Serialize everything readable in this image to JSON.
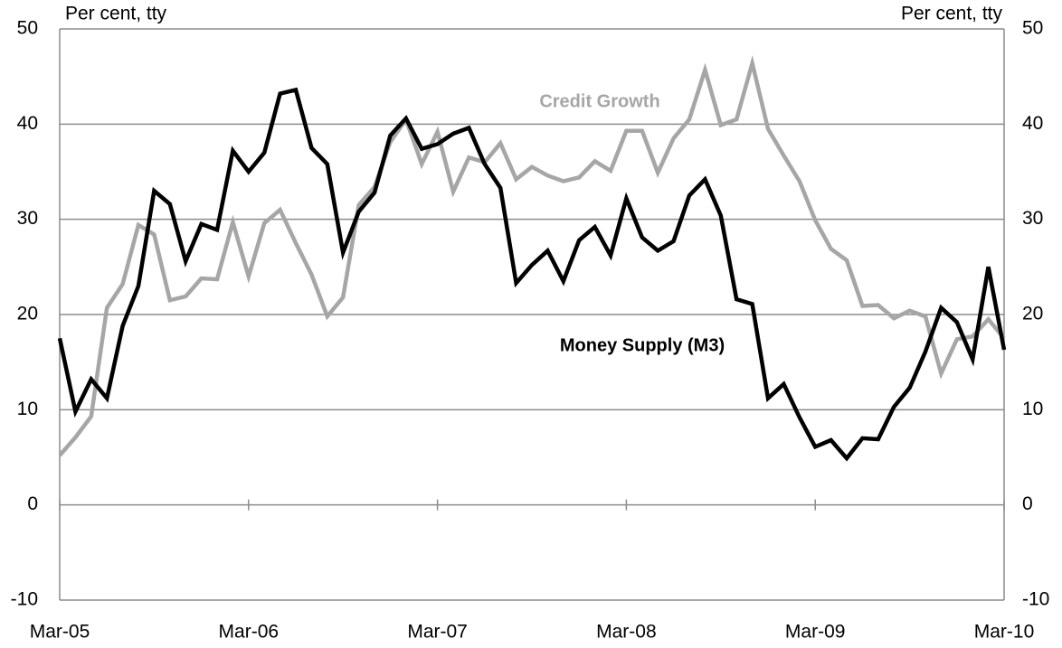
{
  "chart_data": {
    "type": "line",
    "y_label_left": "Per cent, tty",
    "y_label_right": "Per cent, tty",
    "annotations": [
      "Credit Growth",
      "Money Supply (M3)"
    ],
    "categories": [
      "Mar-05",
      null,
      null,
      null,
      null,
      null,
      null,
      null,
      null,
      null,
      null,
      null,
      "Mar-06",
      null,
      null,
      null,
      null,
      null,
      null,
      null,
      null,
      null,
      null,
      null,
      "Mar-07",
      null,
      null,
      null,
      null,
      null,
      null,
      null,
      null,
      null,
      null,
      null,
      "Mar-08",
      null,
      null,
      null,
      null,
      null,
      null,
      null,
      null,
      null,
      null,
      null,
      "Mar-09",
      null,
      null,
      null,
      null,
      null,
      null,
      null,
      null,
      null,
      null,
      null,
      "Mar-10"
    ],
    "series": [
      {
        "name": "Money Supply (M3)",
        "color": "#000000",
        "values": [
          17.5,
          9.8,
          13.2,
          11.2,
          18.8,
          23,
          33,
          31.6,
          25.6,
          29.5,
          28.9,
          37.2,
          35,
          37,
          43.2,
          43.6,
          37.5,
          35.8,
          26.5,
          30.8,
          32.8,
          38.8,
          40.6,
          37.4,
          37.9,
          39,
          39.6,
          35.8,
          33.3,
          23.3,
          25.2,
          26.7,
          23.5,
          27.8,
          29.2,
          26.2,
          32.2,
          28.1,
          26.7,
          27.7,
          32.5,
          34.2,
          30.4,
          21.6,
          21.1,
          11.2,
          12.7,
          9.2,
          6.1,
          6.8,
          4.9,
          7,
          6.9,
          10.3,
          12.3,
          16.1,
          20.7,
          19.2,
          15.3,
          25,
          16.3
        ]
      },
      {
        "name": "Credit Growth",
        "color": "#a6a6a6",
        "values": [
          5.2,
          7.1,
          9.3,
          20.7,
          23.2,
          29.4,
          28.4,
          21.5,
          21.9,
          23.8,
          23.7,
          29.7,
          24,
          29.6,
          31,
          27.5,
          24.2,
          19.8,
          21.8,
          31.5,
          33.4,
          38.1,
          40.5,
          35.8,
          39.2,
          32.9,
          36.5,
          36,
          38,
          34.2,
          35.5,
          34.6,
          34,
          34.4,
          36.1,
          35.1,
          39.3,
          39.3,
          34.9,
          38.5,
          40.5,
          45.7,
          39.9,
          40.5,
          46.4,
          39.5,
          36.7,
          34,
          29.9,
          26.9,
          25.7,
          20.9,
          21,
          19.6,
          20.4,
          19.8,
          13.8,
          17.4,
          17.7,
          19.5,
          17.5
        ]
      }
    ],
    "ylim": [
      -10,
      50
    ],
    "yticks": [
      -10,
      0,
      10,
      20,
      30,
      40,
      50
    ],
    "y2lim": [
      -10,
      50
    ],
    "y2ticks": [
      -10,
      0,
      10,
      20,
      30,
      40,
      50
    ],
    "grid": true
  }
}
